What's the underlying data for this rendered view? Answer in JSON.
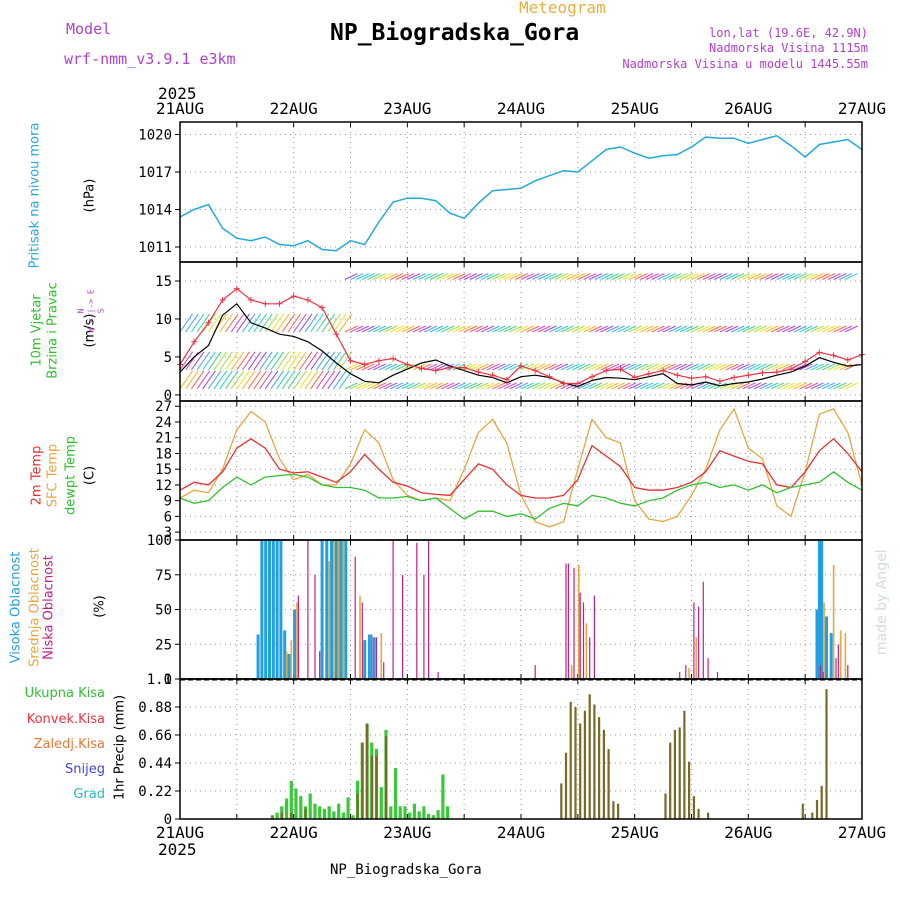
{
  "header": {
    "model_label": "Model",
    "model_name": "wrf-nmm_v3.9.1 e3km",
    "meteogram_label": "Meteogram",
    "station_title": "NP_Biogradska_Gora",
    "lonlat": "lon,lat (19.6E, 42.9N)",
    "elevation": "Nadmorska Visina 1115m",
    "model_elevation": "Nadmorska Visina u modelu 1445.55m",
    "footer_station": "NP_Biogradska_Gora",
    "watermark": "made by Angel"
  },
  "colors": {
    "pressure": "#22a8e0",
    "purple": "#b040d0",
    "orange": "#e8a640",
    "red": "#e83030",
    "green": "#30c030",
    "magenta": "#c0208a",
    "blue_cloud": "#20a0e0",
    "precip_total": "#38c838",
    "precip_conv": "#7a6a28",
    "rain_red": "#ee3344",
    "freezing": "#ee7733",
    "snow": "#4444dd",
    "hail": "#22bbbb"
  },
  "chart_data": [
    {
      "type": "line",
      "panel": "pressure",
      "ylabel_left": "Pritisak na nivou mora",
      "units": "(hPa)",
      "yticks": [
        "1011",
        "1014",
        "1017",
        "1020"
      ],
      "ylim": [
        1009.8,
        1021.0
      ],
      "x": [
        0,
        3,
        6,
        9,
        12,
        15,
        18,
        21,
        24,
        27,
        30,
        33,
        36,
        39,
        42,
        45,
        48,
        51,
        54,
        57,
        60,
        63,
        66,
        69,
        72,
        75,
        78,
        81,
        84,
        87,
        90,
        93,
        96,
        99,
        102,
        105,
        108,
        111,
        114,
        117,
        120,
        123,
        126,
        129,
        132,
        135,
        138,
        141,
        144
      ],
      "values": [
        1013.4,
        1014.0,
        1014.4,
        1012.5,
        1011.7,
        1011.5,
        1011.8,
        1011.2,
        1011.1,
        1011.5,
        1010.8,
        1010.7,
        1011.5,
        1011.2,
        1013.0,
        1014.6,
        1014.9,
        1014.9,
        1014.7,
        1013.7,
        1013.3,
        1014.5,
        1015.5,
        1015.6,
        1015.7,
        1016.3,
        1016.7,
        1017.1,
        1017.0,
        1017.9,
        1018.8,
        1019.0,
        1018.5,
        1018.1,
        1018.3,
        1018.4,
        1019.0,
        1019.8,
        1019.7,
        1019.7,
        1019.3,
        1019.6,
        1019.9,
        1019.1,
        1018.2,
        1019.2,
        1019.4,
        1019.6,
        1018.8
      ]
    },
    {
      "type": "line",
      "panel": "wind",
      "ylabel_left": "10m Vjetar",
      "ylabel_left2": "Brzina i Pravac",
      "units": "(m/s)",
      "compass": "N\nW <-|-> E\nS",
      "yticks": [
        "0",
        "5",
        "10",
        "15"
      ],
      "ylim": [
        -0.8,
        17.5
      ],
      "barb_rows": [
        0.8,
        3.3,
        8.3,
        15.2
      ],
      "x": [
        0,
        3,
        6,
        9,
        12,
        15,
        18,
        21,
        24,
        27,
        30,
        33,
        36,
        39,
        42,
        45,
        48,
        51,
        54,
        57,
        60,
        63,
        66,
        69,
        72,
        75,
        78,
        81,
        84,
        87,
        90,
        93,
        96,
        99,
        102,
        105,
        108,
        111,
        114,
        117,
        120,
        123,
        126,
        129,
        132,
        135,
        138,
        141,
        144
      ],
      "series": [
        {
          "name": "10m wind speed",
          "values": [
            3.0,
            5.0,
            6.5,
            10.5,
            12.0,
            9.5,
            8.8,
            8.0,
            7.7,
            7.0,
            5.8,
            4.2,
            2.8,
            1.8,
            1.6,
            2.6,
            3.4,
            4.2,
            4.6,
            3.8,
            3.2,
            2.6,
            2.3,
            1.6,
            2.4,
            2.6,
            2.3,
            1.6,
            1.1,
            1.9,
            2.3,
            2.2,
            2.0,
            2.4,
            2.8,
            1.5,
            1.3,
            1.7,
            1.2,
            1.5,
            1.7,
            2.1,
            2.6,
            3.0,
            3.8,
            4.9,
            4.3,
            3.8,
            4.0
          ]
        },
        {
          "name": "10m wind gust",
          "values": [
            4.0,
            7.0,
            9.5,
            12.5,
            14.0,
            12.5,
            12.0,
            12.0,
            13.0,
            12.5,
            11.5,
            8.0,
            4.5,
            4.0,
            4.5,
            4.8,
            4.0,
            3.5,
            3.2,
            3.6,
            3.6,
            3.0,
            2.6,
            2.0,
            3.8,
            3.2,
            2.4,
            1.5,
            1.5,
            2.4,
            3.2,
            3.4,
            2.3,
            2.8,
            3.2,
            2.6,
            2.2,
            2.4,
            1.8,
            2.3,
            2.6,
            2.9,
            3.0,
            3.4,
            4.4,
            5.6,
            5.2,
            4.6,
            5.3
          ]
        }
      ]
    },
    {
      "type": "line",
      "panel": "temperature",
      "ylabel_left": "2m Temp",
      "ylabel_left2": "SFC Temp",
      "ylabel_left3": "dewpt Temp",
      "units": "(C)",
      "yticks": [
        "3",
        "6",
        "9",
        "12",
        "15",
        "18",
        "21",
        "24",
        "27"
      ],
      "ylim": [
        1.5,
        28.0
      ],
      "x": [
        0,
        3,
        6,
        9,
        12,
        15,
        18,
        21,
        24,
        27,
        30,
        33,
        36,
        39,
        42,
        45,
        48,
        51,
        54,
        57,
        60,
        63,
        66,
        69,
        72,
        75,
        78,
        81,
        84,
        87,
        90,
        93,
        96,
        99,
        102,
        105,
        108,
        111,
        114,
        117,
        120,
        123,
        126,
        129,
        132,
        135,
        138,
        141,
        144
      ],
      "series": [
        {
          "name": "2m Temp",
          "values": [
            11.0,
            12.5,
            12.0,
            14.5,
            19.0,
            20.8,
            19.0,
            15.0,
            14.3,
            14.5,
            13.5,
            12.5,
            14.5,
            17.8,
            15.0,
            12.5,
            11.8,
            10.5,
            10.2,
            10.0,
            13.0,
            16.0,
            15.0,
            12.0,
            10.0,
            9.5,
            9.5,
            10.0,
            13.0,
            19.5,
            17.5,
            15.5,
            11.5,
            11.0,
            11.0,
            11.5,
            12.5,
            14.5,
            18.5,
            17.5,
            16.5,
            16.0,
            12.0,
            11.5,
            14.5,
            18.5,
            20.8,
            18.0,
            14.5
          ]
        },
        {
          "name": "SFC Temp",
          "values": [
            9.5,
            11.0,
            10.5,
            15.0,
            22.5,
            26.0,
            24.0,
            17.0,
            13.0,
            14.0,
            12.0,
            12.0,
            16.0,
            22.5,
            20.0,
            13.0,
            10.0,
            9.0,
            9.5,
            9.0,
            15.0,
            22.0,
            24.5,
            20.0,
            10.0,
            5.0,
            4.0,
            5.0,
            15.0,
            24.5,
            21.0,
            20.0,
            9.0,
            5.5,
            5.0,
            6.0,
            10.0,
            15.0,
            22.5,
            26.5,
            19.0,
            17.0,
            8.0,
            6.0,
            14.5,
            25.5,
            26.5,
            22.0,
            12.0
          ]
        },
        {
          "name": "dewpt Temp",
          "values": [
            9.5,
            8.5,
            9.0,
            11.5,
            13.5,
            12.0,
            13.5,
            13.8,
            14.0,
            13.5,
            12.0,
            11.5,
            11.5,
            11.0,
            9.5,
            9.5,
            9.8,
            9.0,
            9.5,
            7.5,
            5.5,
            7.0,
            7.0,
            6.0,
            6.5,
            5.5,
            7.5,
            8.5,
            8.0,
            10.0,
            9.5,
            8.5,
            8.0,
            9.0,
            9.5,
            11.0,
            12.0,
            12.5,
            11.5,
            12.0,
            11.0,
            12.0,
            10.5,
            11.5,
            12.0,
            12.5,
            14.5,
            12.5,
            11.0
          ]
        }
      ]
    },
    {
      "type": "bar",
      "panel": "clouds",
      "ylabel_left": "Visoka Oblacnost",
      "ylabel_left2": "Srednja Oblacnost",
      "ylabel_left3": "Niska Oblacnost",
      "units": "(%)",
      "yticks": [
        "0",
        "25",
        "50",
        "75",
        "100"
      ],
      "ylim": [
        0,
        100
      ],
      "series": [
        {
          "name": "Visoka Oblacnost",
          "x": [
            16.5,
            17.3,
            18.1,
            18.9,
            19.7,
            20.5,
            21.3,
            22.1,
            23.0,
            24.2,
            30.0,
            31.0,
            32.0,
            33.0,
            34.0,
            35.0,
            39.0,
            40.0,
            41.0,
            134.5,
            135.0,
            135.5,
            136.5,
            137.5
          ],
          "values": [
            32,
            100,
            100,
            100,
            100,
            100,
            100,
            35,
            18,
            50,
            100,
            100,
            100,
            100,
            100,
            100,
            28,
            32,
            30,
            50,
            100,
            100,
            45,
            33
          ]
        },
        {
          "name": "Srednja Oblacnost",
          "x": [
            22.5,
            23.5,
            24.7,
            31.5,
            32.5,
            33.5,
            34.5,
            38.0,
            42.5,
            82.7,
            84.2,
            85.8,
            107.5,
            109.0,
            136.0,
            138.0,
            139.5,
            140.5
          ],
          "values": [
            20,
            28,
            55,
            85,
            100,
            100,
            100,
            60,
            33,
            10,
            82,
            40,
            8,
            30,
            55,
            82,
            35,
            33
          ]
        },
        {
          "name": "Niska Oblacnost",
          "x": [
            25.0,
            27.0,
            28.5,
            29.5,
            37.0,
            38.5,
            40.5,
            41.5,
            43.0,
            45.0,
            47.0,
            50.0,
            51.5,
            52.5,
            54.5,
            75.0,
            81.5,
            82.0,
            83.2,
            84.5,
            85.2,
            86.5,
            87.5,
            105.5,
            106.8,
            108.5,
            109.5,
            110.5,
            111.5,
            113.5,
            135.2,
            135.8,
            138.5,
            139.0,
            141.0
          ],
          "values": [
            60,
            100,
            75,
            20,
            88,
            55,
            32,
            30,
            12,
            100,
            75,
            98,
            75,
            100,
            5,
            10,
            83,
            83,
            80,
            62,
            55,
            30,
            60,
            5,
            10,
            55,
            52,
            70,
            15,
            5,
            10,
            5,
            15,
            25,
            10
          ]
        }
      ]
    },
    {
      "type": "bar",
      "panel": "precip",
      "legend": [
        "Ukupna Kisa",
        "Konvek.Kisa",
        "Zaledj.Kisa",
        "Snijeg",
        "Grad"
      ],
      "units": "1hr Precip (mm)",
      "yticks": [
        "0",
        "0.22",
        "0.44",
        "0.66",
        "0.88",
        "1.1"
      ],
      "ylim": [
        0,
        1.1
      ],
      "x_labels": [
        "21AUG",
        "22AUG",
        "23AUG",
        "24AUG",
        "25AUG",
        "26AUG",
        "27AUG"
      ],
      "year_label": "2025",
      "series": [
        {
          "name": "Ukupna Kisa",
          "x": [
            19.5,
            20.5,
            21.5,
            22.5,
            23.5,
            24.5,
            25.5,
            26.5,
            27.5,
            28.5,
            29.5,
            30.5,
            31.5,
            32.5,
            33.5,
            34.5,
            35.5,
            36.5,
            37.5,
            38.5,
            39.5,
            40.5,
            41.5,
            42.5,
            43.5,
            44.5,
            45.5,
            46.5,
            47.5,
            48.5,
            49.5,
            50.5,
            51.5,
            52.5,
            53.5,
            54.5,
            55.5,
            56.5
          ],
          "values": [
            0.03,
            0.05,
            0.1,
            0.16,
            0.3,
            0.24,
            0.18,
            0.1,
            0.2,
            0.12,
            0.1,
            0.08,
            0.1,
            0.06,
            0.12,
            0.05,
            0.17,
            0.03,
            0.3,
            0.6,
            0.75,
            0.6,
            0.55,
            0.25,
            0.7,
            0.1,
            0.4,
            0.1,
            0.1,
            0.05,
            0.12,
            0.06,
            0.1,
            0.04,
            0.03,
            0.07,
            0.35,
            0.1
          ]
        },
        {
          "name": "Konvek.Kisa",
          "x": [
            19.5,
            21.5,
            23.5,
            26.5,
            37.5,
            38.5,
            39.5,
            40.5,
            41.5,
            43.5,
            80.5,
            81.5,
            82.5,
            83.5,
            84.5,
            85.5,
            86.5,
            87.5,
            88.5,
            89.5,
            90.5,
            91.5,
            92.5,
            102.5,
            103.5,
            104.5,
            105.5,
            106.5,
            107.5,
            108.5,
            109.5,
            111.5,
            131.5,
            133.5,
            134.5,
            135.5,
            136.5
          ],
          "values": [
            0.02,
            0.05,
            0.05,
            0.08,
            0.2,
            0.6,
            0.75,
            0.5,
            0.5,
            0.65,
            0.28,
            0.52,
            0.92,
            0.88,
            0.75,
            0.85,
            0.98,
            0.9,
            0.8,
            0.7,
            0.55,
            0.14,
            0.12,
            0.2,
            0.6,
            0.7,
            0.72,
            0.85,
            0.45,
            0.18,
            0.08,
            0.05,
            0.12,
            0.05,
            0.15,
            0.26,
            1.02
          ]
        }
      ]
    }
  ]
}
